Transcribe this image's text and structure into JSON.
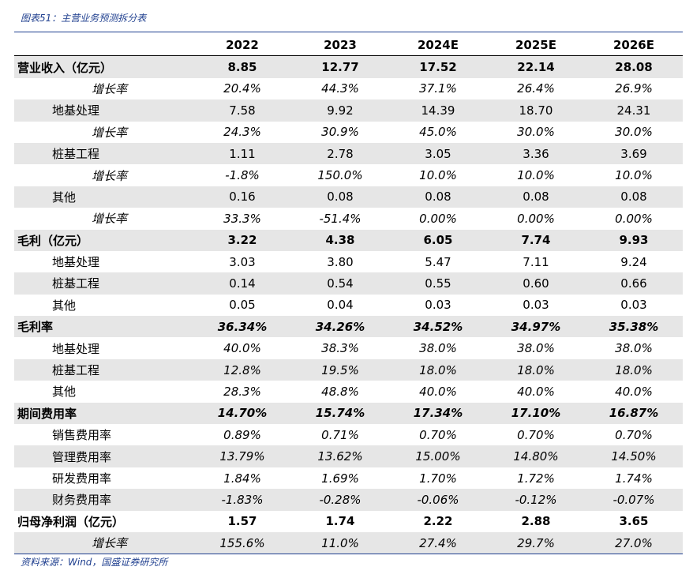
{
  "title": "图表51：主营业务预测拆分表",
  "source": "资料来源：Wind，国盛证券研究所",
  "years": [
    "2022",
    "2023",
    "2024E",
    "2025E",
    "2026E"
  ],
  "rows": [
    {
      "label": "营业收入（亿元）",
      "level": 1,
      "bold": true,
      "italic": false,
      "values": [
        "8.85",
        "12.77",
        "17.52",
        "22.14",
        "28.08"
      ]
    },
    {
      "label": "增长率",
      "level": 3,
      "bold": false,
      "italic": true,
      "values": [
        "20.4%",
        "44.3%",
        "37.1%",
        "26.4%",
        "26.9%"
      ]
    },
    {
      "label": "地基处理",
      "level": 2,
      "bold": false,
      "italic": false,
      "values": [
        "7.58",
        "9.92",
        "14.39",
        "18.70",
        "24.31"
      ]
    },
    {
      "label": "增长率",
      "level": 3,
      "bold": false,
      "italic": true,
      "values": [
        "24.3%",
        "30.9%",
        "45.0%",
        "30.0%",
        "30.0%"
      ]
    },
    {
      "label": "桩基工程",
      "level": 2,
      "bold": false,
      "italic": false,
      "values": [
        "1.11",
        "2.78",
        "3.05",
        "3.36",
        "3.69"
      ]
    },
    {
      "label": "增长率",
      "level": 3,
      "bold": false,
      "italic": true,
      "values": [
        "-1.8%",
        "150.0%",
        "10.0%",
        "10.0%",
        "10.0%"
      ]
    },
    {
      "label": "其他",
      "level": 2,
      "bold": false,
      "italic": false,
      "values": [
        "0.16",
        "0.08",
        "0.08",
        "0.08",
        "0.08"
      ]
    },
    {
      "label": "增长率",
      "level": 3,
      "bold": false,
      "italic": true,
      "values": [
        "33.3%",
        "-51.4%",
        "0.00%",
        "0.00%",
        "0.00%"
      ]
    },
    {
      "label": "毛利（亿元）",
      "level": 1,
      "bold": true,
      "italic": false,
      "values": [
        "3.22",
        "4.38",
        "6.05",
        "7.74",
        "9.93"
      ]
    },
    {
      "label": "地基处理",
      "level": 2,
      "bold": false,
      "italic": false,
      "values": [
        "3.03",
        "3.80",
        "5.47",
        "7.11",
        "9.24"
      ]
    },
    {
      "label": "桩基工程",
      "level": 2,
      "bold": false,
      "italic": false,
      "values": [
        "0.14",
        "0.54",
        "0.55",
        "0.60",
        "0.66"
      ]
    },
    {
      "label": "其他",
      "level": 2,
      "bold": false,
      "italic": false,
      "values": [
        "0.05",
        "0.04",
        "0.03",
        "0.03",
        "0.03"
      ]
    },
    {
      "label": "毛利率",
      "level": 1,
      "bold": true,
      "italic": true,
      "values": [
        "36.34%",
        "34.26%",
        "34.52%",
        "34.97%",
        "35.38%"
      ]
    },
    {
      "label": "地基处理",
      "level": 2,
      "bold": false,
      "italic": true,
      "values": [
        "40.0%",
        "38.3%",
        "38.0%",
        "38.0%",
        "38.0%"
      ]
    },
    {
      "label": "桩基工程",
      "level": 2,
      "bold": false,
      "italic": true,
      "values": [
        "12.8%",
        "19.5%",
        "18.0%",
        "18.0%",
        "18.0%"
      ]
    },
    {
      "label": "其他",
      "level": 2,
      "bold": false,
      "italic": true,
      "values": [
        "28.3%",
        "48.8%",
        "40.0%",
        "40.0%",
        "40.0%"
      ]
    },
    {
      "label": "期间费用率",
      "level": 1,
      "bold": true,
      "italic": true,
      "values": [
        "14.70%",
        "15.74%",
        "17.34%",
        "17.10%",
        "16.87%"
      ]
    },
    {
      "label": "销售费用率",
      "level": 2,
      "bold": false,
      "italic": true,
      "values": [
        "0.89%",
        "0.71%",
        "0.70%",
        "0.70%",
        "0.70%"
      ]
    },
    {
      "label": "管理费用率",
      "level": 2,
      "bold": false,
      "italic": true,
      "values": [
        "13.79%",
        "13.62%",
        "15.00%",
        "14.80%",
        "14.50%"
      ]
    },
    {
      "label": "研发费用率",
      "level": 2,
      "bold": false,
      "italic": true,
      "values": [
        "1.84%",
        "1.69%",
        "1.70%",
        "1.72%",
        "1.74%"
      ]
    },
    {
      "label": "财务费用率",
      "level": 2,
      "bold": false,
      "italic": true,
      "values": [
        "-1.83%",
        "-0.28%",
        "-0.06%",
        "-0.12%",
        "-0.07%"
      ]
    },
    {
      "label": "归母净利润（亿元）",
      "level": 1,
      "bold": true,
      "italic": false,
      "values": [
        "1.57",
        "1.74",
        "2.22",
        "2.88",
        "3.65"
      ]
    },
    {
      "label": "增长率",
      "level": 3,
      "bold": false,
      "italic": true,
      "values": [
        "155.6%",
        "11.0%",
        "27.4%",
        "29.7%",
        "27.0%"
      ]
    }
  ]
}
